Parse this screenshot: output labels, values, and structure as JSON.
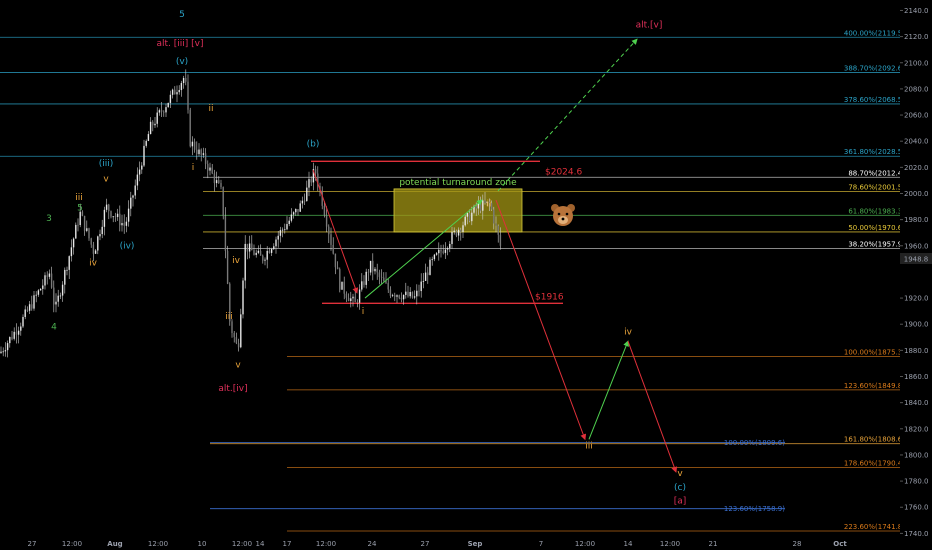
{
  "chart_data": {
    "type": "candlestick",
    "symbol_price": "1948.8",
    "ylim": [
      1738,
      2148
    ],
    "y_ticks": [
      {
        "value": 2140,
        "label": "2140.0"
      },
      {
        "value": 2120,
        "label": "2120.0"
      },
      {
        "value": 2100,
        "label": "2100.0"
      },
      {
        "value": 2080,
        "label": "2080.0"
      },
      {
        "value": 2060,
        "label": "2060.0"
      },
      {
        "value": 2040,
        "label": "2040.0"
      },
      {
        "value": 2020,
        "label": "2020.0"
      },
      {
        "value": 2000,
        "label": "2000.0"
      },
      {
        "value": 1980,
        "label": "1980.0"
      },
      {
        "value": 1960,
        "label": "1960.0"
      },
      {
        "value": 1920,
        "label": "1920.0"
      },
      {
        "value": 1900,
        "label": "1900.0"
      },
      {
        "value": 1880,
        "label": "1880.0"
      },
      {
        "value": 1860,
        "label": "1860.0"
      },
      {
        "value": 1840,
        "label": "1840.0"
      },
      {
        "value": 1820,
        "label": "1820.0"
      },
      {
        "value": 1800,
        "label": "1800.0"
      },
      {
        "value": 1780,
        "label": "1780.0"
      },
      {
        "value": 1760,
        "label": "1760.0"
      },
      {
        "value": 1740,
        "label": "1740.0"
      }
    ],
    "x_ticks": [
      {
        "label": "27",
        "bold": false
      },
      {
        "label": "12:00",
        "bold": false
      },
      {
        "label": "Aug",
        "bold": true
      },
      {
        "label": "12:00",
        "bold": false
      },
      {
        "label": "10",
        "bold": false
      },
      {
        "label": "12:00",
        "bold": false
      },
      {
        "label": "14",
        "bold": false
      },
      {
        "label": "17",
        "bold": false
      },
      {
        "label": "12:00",
        "bold": false
      },
      {
        "label": "24",
        "bold": false
      },
      {
        "label": "27",
        "bold": false
      },
      {
        "label": "Sep",
        "bold": true
      },
      {
        "label": "7",
        "bold": false
      },
      {
        "label": "12:00",
        "bold": false
      },
      {
        "label": "14",
        "bold": false
      },
      {
        "label": "12:00",
        "bold": false
      },
      {
        "label": "21",
        "bold": false
      },
      {
        "label": "28",
        "bold": false
      },
      {
        "label": "Oct",
        "bold": true
      },
      {
        "label": "6",
        "bold": false
      }
    ],
    "fib_levels": [
      {
        "price": 2119.5,
        "label": "400.00%(2119.5)",
        "color": "#2ba3c7",
        "start": 0,
        "white": false
      },
      {
        "price": 2092.6,
        "label": "388.70%(2092.6)",
        "color": "#2ba3c7",
        "start": 0,
        "white": false
      },
      {
        "price": 2068.5,
        "label": "378.60%(2068.5)",
        "color": "#2ba3c7",
        "start": 0,
        "white": false
      },
      {
        "price": 2028.5,
        "label": "361.80%(2028.5)",
        "color": "#2ba3c7",
        "start": 0,
        "white": false
      },
      {
        "price": 2012.4,
        "label": "88.70%(2012.4)",
        "color": "#d8d8d8",
        "start": 1,
        "white": true
      },
      {
        "price": 2001.5,
        "label": "78.60%(2001.5)",
        "color": "#e8c93a",
        "start": 1,
        "white": false
      },
      {
        "price": 1983.3,
        "label": "61.80%(1983.3)",
        "color": "#4caf50",
        "start": 1,
        "white": false
      },
      {
        "price": 1970.6,
        "label": "50.00%(1970.6)",
        "color": "#e8c93a",
        "start": 1,
        "white": false
      },
      {
        "price": 1957.9,
        "label": "38.20%(1957.9)",
        "color": "#d8d8d8",
        "start": 1,
        "white": true
      },
      {
        "price": 1875.3,
        "label": "100.00%(1875.3)",
        "color": "#d97a1a",
        "start": 2,
        "white": false
      },
      {
        "price": 1849.8,
        "label": "123.60%(1849.8)",
        "color": "#d97a1a",
        "start": 2,
        "white": false
      },
      {
        "price": 1808.6,
        "label": "161.80%(1808.6)",
        "color": "#e8a33a",
        "start": 3,
        "white": false
      },
      {
        "price": 1790.4,
        "label": "178.60%(1790.4)",
        "color": "#d97a1a",
        "start": 2,
        "white": false
      },
      {
        "price": 1741.8,
        "label": "223.60%(1741.8)",
        "color": "#d97a1a",
        "start": 2,
        "white": false
      }
    ],
    "secondary_fibs": [
      {
        "price": 1809.6,
        "label": "100.00%(1809.6)",
        "color": "#3a6fd0"
      },
      {
        "price": 1758.9,
        "label": "123.60%(1758.9)",
        "color": "#3a6fd0"
      }
    ],
    "zone": {
      "label": "potential turnaround zone",
      "top": 2003.5,
      "bottom": 1970.6
    },
    "targets": [
      {
        "label": "$2024.6",
        "price": 2024.6
      },
      {
        "label": "$1916",
        "price": 1916
      }
    ],
    "wave_labels": [
      {
        "text": "5",
        "color": "#2ba3c7",
        "x": 182,
        "price": 2135
      },
      {
        "text": "alt. [iii] [v]",
        "color": "#e0305a",
        "x": 180,
        "price": 2113
      },
      {
        "text": "(v)",
        "color": "#2ba3c7",
        "x": 182,
        "price": 2099
      },
      {
        "text": "ii",
        "color": "#e8a33a",
        "x": 211,
        "price": 2063
      },
      {
        "text": "i",
        "color": "#e8a33a",
        "x": 193,
        "price": 2018
      },
      {
        "text": "(iii)",
        "color": "#2ba3c7",
        "x": 106,
        "price": 2021
      },
      {
        "text": "v",
        "color": "#e8a33a",
        "x": 106,
        "price": 2009
      },
      {
        "text": "iii",
        "color": "#e8a33a",
        "x": 79,
        "price": 1995
      },
      {
        "text": "5",
        "color": "#4caf50",
        "x": 80,
        "price": 1987
      },
      {
        "text": "3",
        "color": "#4caf50",
        "x": 49,
        "price": 1979
      },
      {
        "text": "(iv)",
        "color": "#2ba3c7",
        "x": 127,
        "price": 1958
      },
      {
        "text": "iv",
        "color": "#e8a33a",
        "x": 93,
        "price": 1945
      },
      {
        "text": "iv",
        "color": "#e8a33a",
        "x": 236,
        "price": 1947
      },
      {
        "text": "iii",
        "color": "#e8a33a",
        "x": 229,
        "price": 1904
      },
      {
        "text": "4",
        "color": "#4caf50",
        "x": 54,
        "price": 1896
      },
      {
        "text": "v",
        "color": "#e8a33a",
        "x": 238,
        "price": 1867
      },
      {
        "text": "alt.[iv]",
        "color": "#e0305a",
        "x": 233,
        "price": 1849
      },
      {
        "text": "(b)",
        "color": "#2ba3c7",
        "x": 313,
        "price": 2036
      },
      {
        "text": "i",
        "color": "#e8a33a",
        "x": 363,
        "price": 1908
      },
      {
        "text": "ii",
        "color": "#e8a33a",
        "x": 489,
        "price": 1990
      },
      {
        "text": "alt.[v]",
        "color": "#e0305a",
        "x": 649,
        "price": 2127
      },
      {
        "text": "iv",
        "color": "#e8a33a",
        "x": 628,
        "price": 1892
      },
      {
        "text": "iii",
        "color": "#e8a33a",
        "x": 589,
        "price": 1805
      },
      {
        "text": "v",
        "color": "#e8a33a",
        "x": 680,
        "price": 1784
      },
      {
        "text": "(c)",
        "color": "#2ba3c7",
        "x": 680,
        "price": 1773
      },
      {
        "text": "[a]",
        "color": "#e0305a",
        "x": 680,
        "price": 1763
      }
    ]
  }
}
